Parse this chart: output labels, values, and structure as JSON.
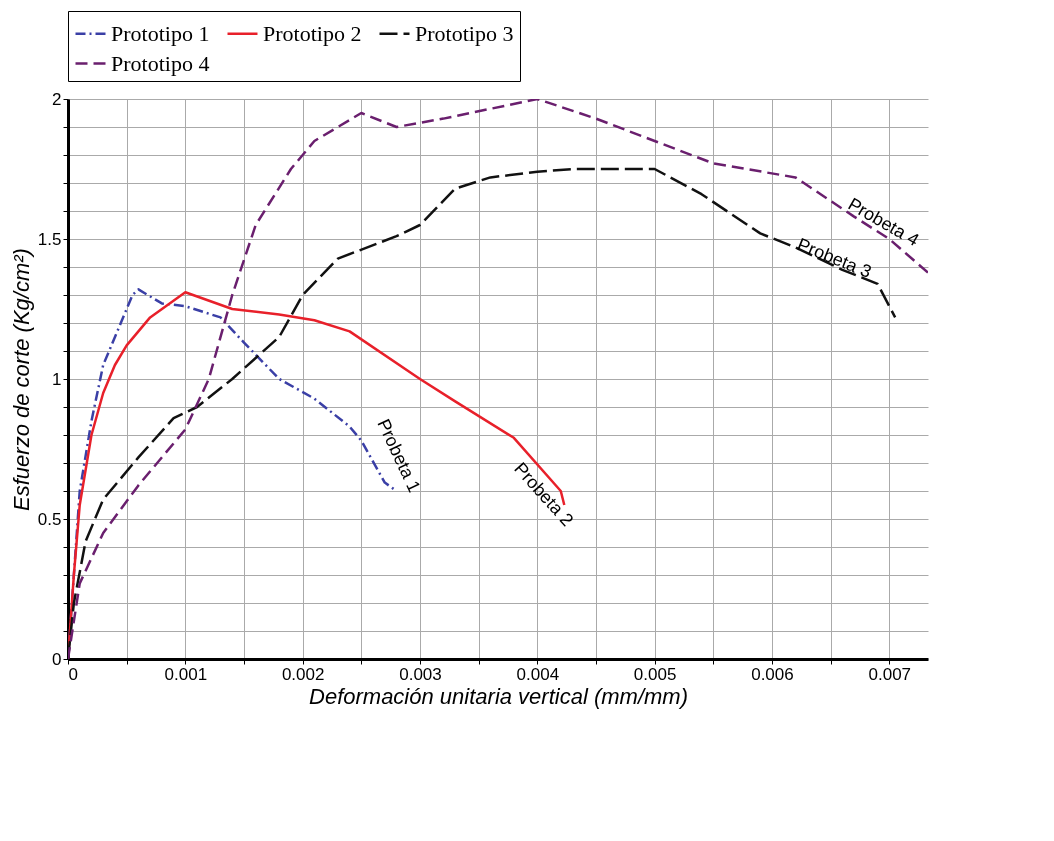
{
  "chart_data": {
    "type": "line",
    "xlabel": "Deformación unitaria vertical (mm/mm)",
    "ylabel": "Esfuerzo de corte (Kg/cm²)",
    "xlim": [
      0,
      0.00733
    ],
    "xticks": [
      0,
      {
        "value": 0.0005,
        "label": null
      },
      0.001,
      {
        "value": 0.0015,
        "label": null
      },
      0.002,
      {
        "value": 0.0025,
        "label": null
      },
      0.003,
      {
        "value": 0.0035,
        "label": null
      },
      0.004,
      {
        "value": 0.0045,
        "label": null
      },
      0.005,
      {
        "value": 0.0055,
        "label": null
      },
      0.006,
      {
        "value": 0.0065,
        "label": null
      },
      0.007
    ],
    "ylim": [
      0,
      2
    ],
    "yticks": [
      0,
      {
        "value": 0.1,
        "label": null
      },
      {
        "value": 0.2,
        "label": null
      },
      {
        "value": 0.3,
        "label": null
      },
      {
        "value": 0.4,
        "label": null
      },
      0.5,
      {
        "value": 0.6,
        "label": null
      },
      {
        "value": 0.7,
        "label": null
      },
      {
        "value": 0.8,
        "label": null
      },
      {
        "value": 0.9,
        "label": null
      },
      1,
      {
        "value": 1.1,
        "label": null
      },
      {
        "value": 1.2,
        "label": null
      },
      {
        "value": 1.3,
        "label": null
      },
      {
        "value": 1.4,
        "label": null
      },
      1.5,
      {
        "value": 1.6,
        "label": null
      },
      {
        "value": 1.7,
        "label": null
      },
      {
        "value": 1.8,
        "label": null
      },
      {
        "value": 1.9,
        "label": null
      },
      2
    ],
    "grid": true,
    "legend": "top",
    "series": [
      {
        "name": "Prototipo 1",
        "color": "#3a3fa6",
        "line_style": "dashed",
        "x": [
          0,
          0.0001,
          0.0002,
          0.0003,
          0.00045,
          0.00055,
          0.0006,
          0.0008,
          0.001,
          0.0013,
          0.0015,
          0.0018,
          0.0021,
          0.0024,
          0.0025,
          0.0027,
          0.0028
        ],
        "values": [
          0,
          0.6,
          0.85,
          1.05,
          1.2,
          1.3,
          1.32,
          1.27,
          1.26,
          1.22,
          1.13,
          1.0,
          0.93,
          0.83,
          0.78,
          0.63,
          0.6
        ]
      },
      {
        "name": "Prototipo 2",
        "color": "#e8202a",
        "line_style": "solid",
        "x": [
          0,
          5e-05,
          0.0001,
          0.0002,
          0.0003,
          0.0004,
          0.0005,
          0.0007,
          0.001,
          0.0014,
          0.0018,
          0.0021,
          0.0024,
          0.003,
          0.0033,
          0.0038,
          0.0042,
          0.00423
        ],
        "values": [
          0,
          0.3,
          0.55,
          0.8,
          0.95,
          1.05,
          1.12,
          1.22,
          1.31,
          1.25,
          1.23,
          1.21,
          1.17,
          1.0,
          0.92,
          0.79,
          0.6,
          0.55
        ]
      },
      {
        "name": "Prototipo 3",
        "color": "#111111",
        "line_style": "dashed",
        "x": [
          0,
          5e-05,
          0.00015,
          0.0003,
          0.0006,
          0.0009,
          0.0011,
          0.0014,
          0.0018,
          0.002,
          0.0023,
          0.0028,
          0.003,
          0.0033,
          0.0036,
          0.004,
          0.0043,
          0.005,
          0.0054,
          0.0059,
          0.0062,
          0.0066,
          0.0069,
          0.00705
        ],
        "values": [
          0,
          0.2,
          0.42,
          0.57,
          0.72,
          0.86,
          0.9,
          1.0,
          1.15,
          1.3,
          1.43,
          1.51,
          1.55,
          1.68,
          1.72,
          1.74,
          1.75,
          1.75,
          1.66,
          1.52,
          1.47,
          1.39,
          1.34,
          1.22
        ]
      },
      {
        "name": "Prototipo 4",
        "color": "#6a1f6e",
        "line_style": "dashed",
        "x": [
          0,
          0.0001,
          0.0003,
          0.0006,
          0.001,
          0.0012,
          0.0014,
          0.0016,
          0.0019,
          0.0021,
          0.0025,
          0.0028,
          0.0032,
          0.004,
          0.0045,
          0.005,
          0.0055,
          0.0062,
          0.0067,
          0.007,
          0.00733
        ],
        "values": [
          0,
          0.27,
          0.45,
          0.62,
          0.82,
          1.0,
          1.3,
          1.55,
          1.75,
          1.85,
          1.95,
          1.9,
          1.93,
          2.0,
          1.93,
          1.85,
          1.77,
          1.72,
          1.58,
          1.5,
          1.38
        ]
      }
    ],
    "annotations": [
      "Probeta 1",
      "Probeta 2",
      "Probeta 3",
      "Probeta 4"
    ]
  }
}
